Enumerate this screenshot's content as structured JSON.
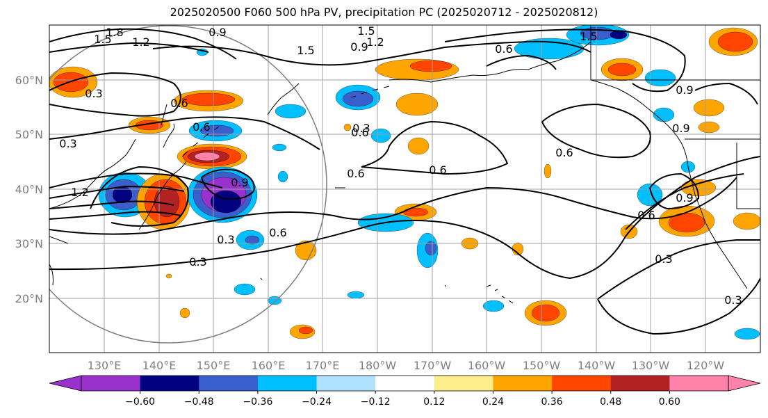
{
  "title": "2025020500 F060 500 hPa PV, precipitation PC (2025020712 - 2025020812)",
  "lat_labels": [
    "60°N",
    "50°N",
    "40°N",
    "30°N",
    "20°N"
  ],
  "lon_labels": [
    "130°E",
    "140°E",
    "150°E",
    "160°E",
    "170°E",
    "180°W",
    "170°W",
    "160°W",
    "150°W",
    "140°W",
    "130°W",
    "120°W"
  ],
  "contour_labels": [
    "1.8",
    "1.5",
    "1.2",
    "0.9",
    "1.5",
    "1.5",
    "1.2",
    "0.9",
    "0.6",
    "1.5",
    "0.9",
    "0.6",
    "0.3",
    "0.6",
    "0.9",
    "1.2",
    "0.6",
    "0.6",
    "0.6",
    "0.3",
    "0.6",
    "0.3",
    "0.9",
    "0.3",
    "0.3",
    "0.9",
    "0.6",
    "0.6",
    "0.3",
    "0.3"
  ],
  "colorbar": {
    "ticks": [
      "−0.60",
      "−0.48",
      "−0.36",
      "−0.24",
      "−0.12",
      "0.12",
      "0.24",
      "0.36",
      "0.48",
      "0.60"
    ],
    "colors": [
      "#9932cc",
      "#000080",
      "#3a5fcd",
      "#00bfff",
      "#b0e2ff",
      "#ffffff",
      "#ffec8b",
      "#ffa500",
      "#ff4500",
      "#b22222",
      "#ff82ab",
      "#ff82ab"
    ]
  },
  "fill_colors": {
    "neg1": "#b0e2ff",
    "neg2": "#00bfff",
    "neg3": "#3a5fcd",
    "neg4": "#000080",
    "neg5": "#9932cc",
    "pos1": "#ffec8b",
    "pos2": "#ffa500",
    "pos3": "#ff4500",
    "pos4": "#b22222",
    "pos5": "#ff82ab"
  }
}
